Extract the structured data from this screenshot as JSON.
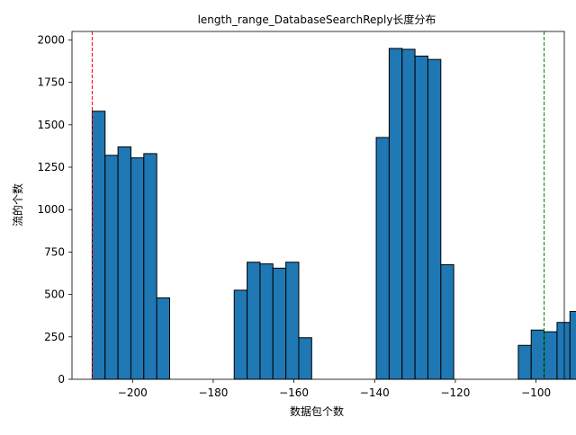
{
  "chart_data": {
    "type": "bar",
    "title": "length_range_DatabaseSearchReply长度分布",
    "xlabel": "数据包个数",
    "ylabel": "流的个数",
    "xlim": [
      -215,
      -93
    ],
    "ylim": [
      0,
      2050
    ],
    "xticks": [
      -200,
      -180,
      -160,
      -140,
      -120,
      -100
    ],
    "xtick_labels": [
      "−200",
      "−180",
      "−160",
      "−140",
      "−120",
      "−100"
    ],
    "yticks": [
      0,
      250,
      500,
      750,
      1000,
      1250,
      1500,
      1750,
      2000
    ],
    "ytick_labels": [
      "0",
      "250",
      "500",
      "750",
      "1000",
      "1250",
      "1500",
      "1750",
      "2000"
    ],
    "bin_start": -210,
    "bin_width": 3.2,
    "values": [
      1580,
      1320,
      1370,
      1305,
      1330,
      480,
      0,
      0,
      0,
      0,
      0,
      525,
      690,
      680,
      655,
      690,
      245,
      0,
      0,
      0,
      0,
      0,
      1425,
      1950,
      1945,
      1905,
      1885,
      675,
      0,
      0,
      0,
      0,
      0,
      200,
      290,
      280,
      335,
      400
    ],
    "bar_color": "#1f77b4",
    "bar_edge_color": "#000000",
    "reference_lines": [
      {
        "name": "min",
        "x": -210,
        "color": "#ff0000",
        "style": "dashed"
      },
      {
        "name": "max",
        "x": -98,
        "color": "#008000",
        "style": "dashed"
      }
    ]
  }
}
